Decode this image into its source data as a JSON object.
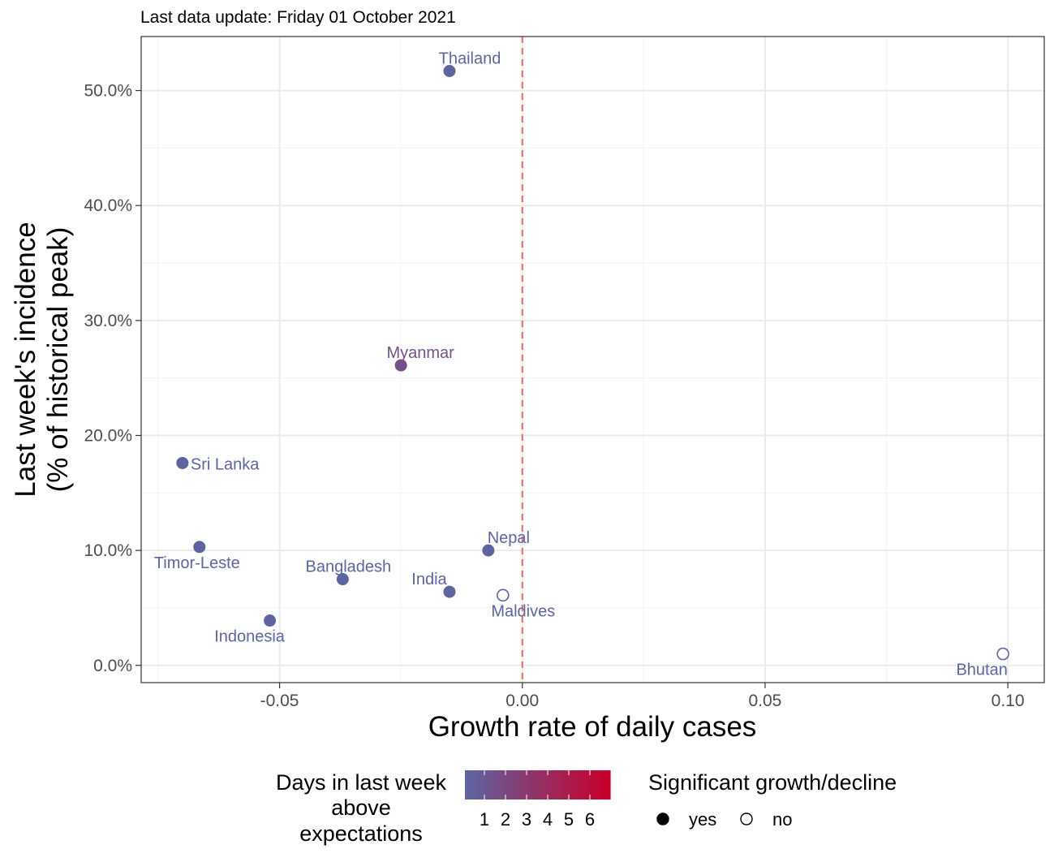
{
  "subtitle": "Last data update: Friday 01 October 2021",
  "chart_data": {
    "type": "scatter",
    "xlabel": "Growth rate of daily cases",
    "ylabel_lines": [
      "Last week's incidence",
      "(% of historical peak)"
    ],
    "xlim": [
      -0.0785,
      0.1075
    ],
    "ylim": [
      -1.5,
      54.7
    ],
    "x_ticks": [
      -0.05,
      0.0,
      0.05,
      0.1
    ],
    "x_tick_labels": [
      "-0.05",
      "0.00",
      "0.05",
      "0.10"
    ],
    "y_ticks": [
      0,
      10,
      20,
      30,
      40,
      50
    ],
    "y_tick_labels": [
      "0.0%",
      "10.0%",
      "20.0%",
      "30.0%",
      "40.0%",
      "50.0%"
    ],
    "grid": true,
    "reference_line": {
      "x": 0,
      "style": "dashed",
      "color": "#e8736b"
    },
    "points": [
      {
        "name": "Thailand",
        "x": -0.015,
        "y": 51.7,
        "days": 1,
        "significant": true
      },
      {
        "name": "Myanmar",
        "x": -0.025,
        "y": 26.1,
        "days": 2,
        "significant": true
      },
      {
        "name": "Sri Lanka",
        "x": -0.07,
        "y": 17.6,
        "days": 1,
        "significant": true
      },
      {
        "name": "Timor-Leste",
        "x": -0.0665,
        "y": 10.3,
        "days": 1,
        "significant": true
      },
      {
        "name": "Nepal",
        "x": -0.007,
        "y": 10.0,
        "days": 1,
        "significant": true
      },
      {
        "name": "Bangladesh",
        "x": -0.037,
        "y": 7.5,
        "days": 1,
        "significant": true
      },
      {
        "name": "India",
        "x": -0.015,
        "y": 6.4,
        "days": 1,
        "significant": true
      },
      {
        "name": "Maldives",
        "x": -0.004,
        "y": 6.1,
        "days": 1,
        "significant": false
      },
      {
        "name": "Indonesia",
        "x": -0.052,
        "y": 3.9,
        "days": 1,
        "significant": true
      },
      {
        "name": "Bhutan",
        "x": 0.099,
        "y": 1.0,
        "days": 1,
        "significant": false
      }
    ],
    "legend": {
      "placement": "bottom",
      "color_title_lines": [
        "Days in last week",
        "above",
        "expectations"
      ],
      "color_ticks": [
        "1",
        "2",
        "3",
        "4",
        "5",
        "6"
      ],
      "color_low": "#5e64a0",
      "color_high": "#c8002c",
      "shape_title": "Significant growth/decline",
      "shape_items": [
        {
          "label": "yes",
          "filled": true
        },
        {
          "label": "no",
          "filled": false
        }
      ]
    }
  }
}
